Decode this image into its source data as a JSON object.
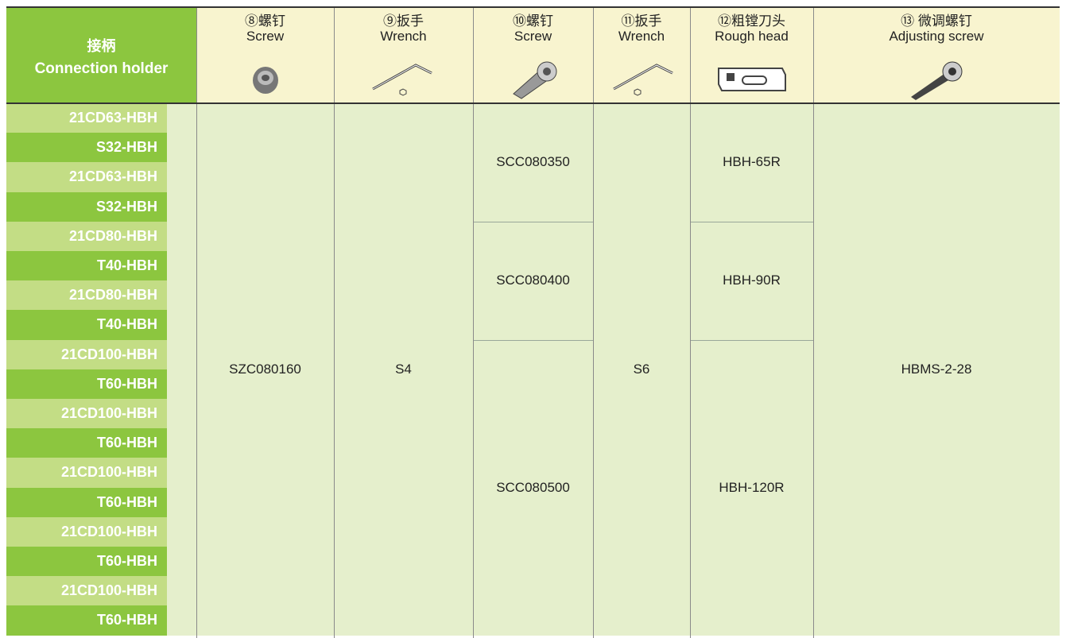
{
  "table": {
    "header": {
      "title": "接柄",
      "subtitle": "Connection holder"
    },
    "columns": [
      {
        "title": "⑧螺钉",
        "subtitle": "Screw",
        "cells": [
          "SZC080160"
        ]
      },
      {
        "title": "⑨扳手",
        "subtitle": "Wrench",
        "cells": [
          "S4"
        ]
      },
      {
        "title": "⑩螺钉",
        "subtitle": "Screw",
        "cells": [
          "SCC080350",
          "SCC080400",
          "SCC080500"
        ]
      },
      {
        "title": "⑪扳手",
        "subtitle": "Wrench",
        "cells": [
          "S6"
        ]
      },
      {
        "title": "⑫粗镗刀头",
        "subtitle": "Rough head",
        "cells": [
          "HBH-65R",
          "HBH-90R",
          "HBH-120R"
        ]
      },
      {
        "title": "⑬ 微调螺钉",
        "subtitle": "Adjusting screw",
        "cells": [
          "HBMS-2-28"
        ]
      }
    ],
    "holders": [
      "21CD63-HBH",
      "S32-HBH",
      "21CD63-HBH",
      "S32-HBH",
      "21CD80-HBH",
      "T40-HBH",
      "21CD80-HBH",
      "T40-HBH",
      "21CD100-HBH",
      "T60-HBH",
      "21CD100-HBH",
      "T60-HBH",
      "21CD100-HBH",
      "T60-HBH",
      "21CD100-HBH",
      "T60-HBH",
      "21CD100-HBH",
      "T60-HBH"
    ]
  }
}
